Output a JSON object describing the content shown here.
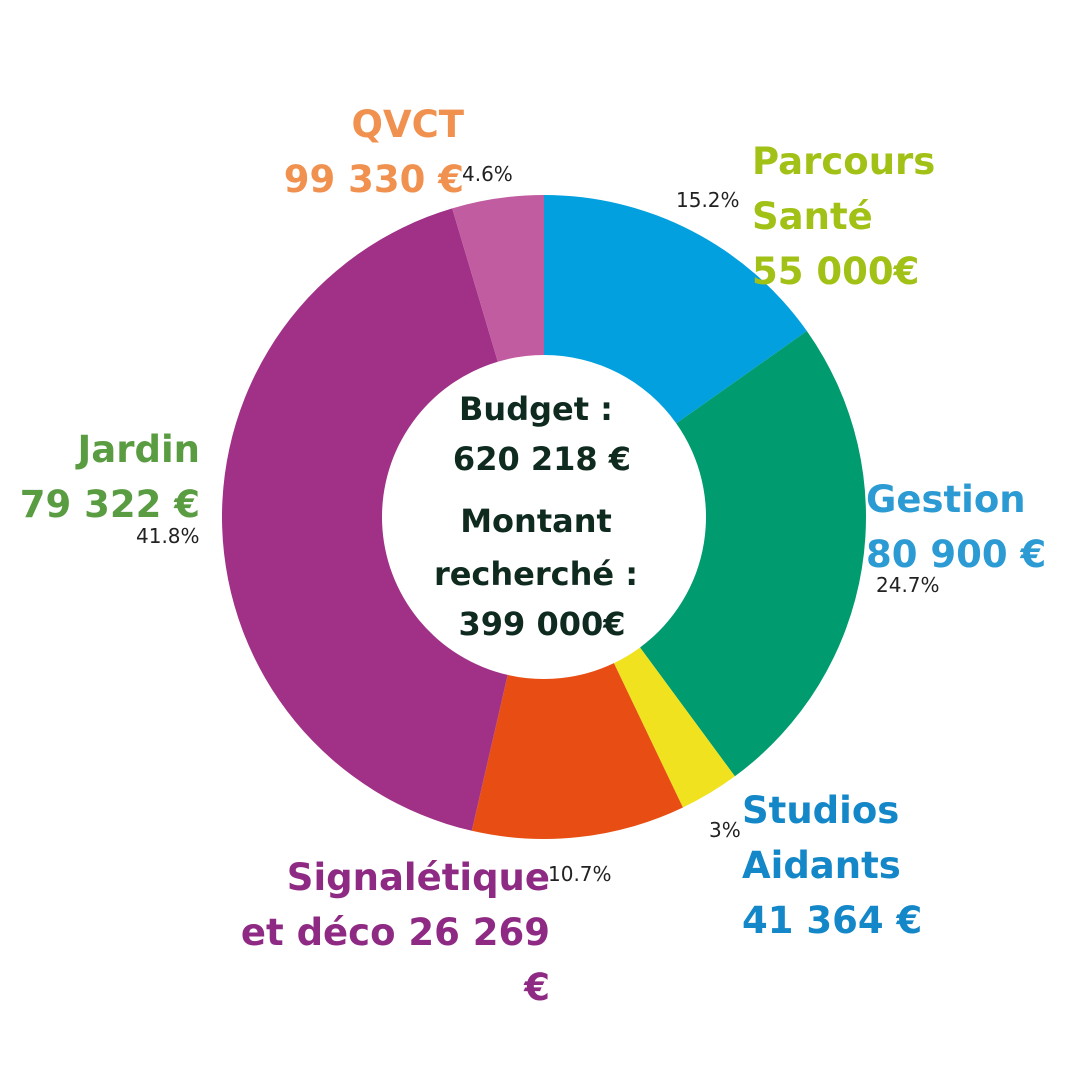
{
  "chart_data": {
    "type": "pie",
    "donut": true,
    "center_text": {
      "budget_label": "Budget :",
      "budget_value": "620 218 €",
      "sought_label_1": "Montant",
      "sought_label_2": "recherché :",
      "sought_value": "399 000€"
    },
    "slices": [
      {
        "id": "parcours",
        "label_lines": [
          "Parcours",
          "Santé",
          "55 000€"
        ],
        "percent": 15.2,
        "percent_label": "15.2%",
        "color": "#02a0de",
        "label_color": "#a2c116"
      },
      {
        "id": "gestion",
        "label_lines": [
          "Gestion",
          "80 900 €"
        ],
        "percent": 24.7,
        "percent_label": "24.7%",
        "color": "#009b6f",
        "label_color": "#2c9bd4"
      },
      {
        "id": "studios",
        "label_lines": [
          "Studios",
          "Aidants",
          "41 364 €"
        ],
        "percent": 3.0,
        "percent_label": "3%",
        "color": "#f0e21e",
        "label_color": "#1387c7"
      },
      {
        "id": "signaletique",
        "label_lines": [
          "Signalétique",
          "et déco 26 269",
          "€"
        ],
        "percent": 10.7,
        "percent_label": "10.7%",
        "color": "#e84e13",
        "label_color": "#8e2a83"
      },
      {
        "id": "jardin",
        "label_lines": [
          "Jardin",
          "79 322 €"
        ],
        "percent": 41.8,
        "percent_label": "41.8%",
        "color": "#a03187",
        "label_color": "#5a9c41"
      },
      {
        "id": "qvct",
        "label_lines": [
          "QVCT",
          "99 330 €"
        ],
        "percent": 4.6,
        "percent_label": "4.6%",
        "color": "#c25ca0",
        "label_color": "#f0914f"
      }
    ]
  }
}
